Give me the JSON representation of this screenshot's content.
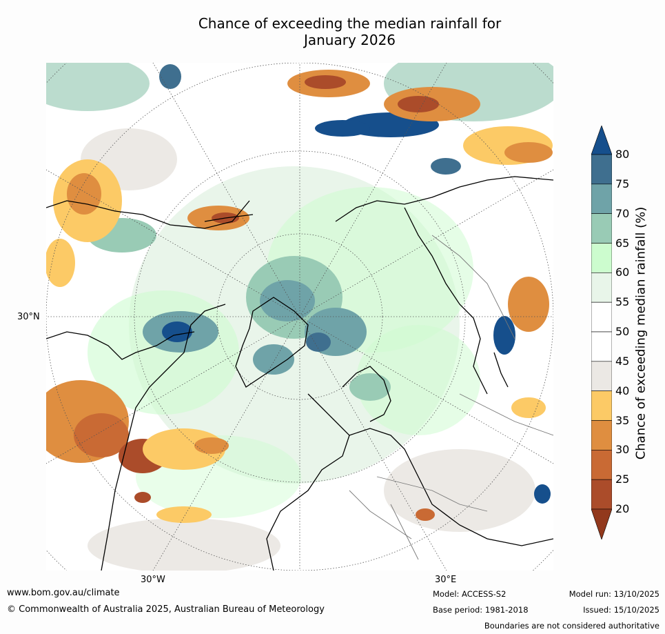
{
  "title": {
    "line1": "Chance of exceeding the median rainfall for",
    "line2": "January 2026"
  },
  "map": {
    "projection": "north-polar-stereographic",
    "lat_label": "30°N",
    "lon_labels": {
      "west": "30°W",
      "east": "30°E"
    }
  },
  "colorbar": {
    "label": "Chance of exceeding median rainfall (%)",
    "min": 20,
    "max": 80,
    "ticks": [
      "80",
      "75",
      "70",
      "65",
      "60",
      "55",
      "50",
      "45",
      "40",
      "35",
      "30",
      "25",
      "20"
    ],
    "bins": [
      {
        "from": 75,
        "to": 80,
        "color": "#3f6f8f"
      },
      {
        "from": 70,
        "to": 75,
        "color": "#6fa3a8"
      },
      {
        "from": 65,
        "to": 70,
        "color": "#99cbb5"
      },
      {
        "from": 60,
        "to": 65,
        "color": "#ccfcce"
      },
      {
        "from": 55,
        "to": 60,
        "color": "#e8f5e9"
      },
      {
        "from": 50,
        "to": 55,
        "color": "#ffffff"
      },
      {
        "from": 45,
        "to": 50,
        "color": "#ffffff"
      },
      {
        "from": 40,
        "to": 45,
        "color": "#ebe8e4"
      },
      {
        "from": 35,
        "to": 40,
        "color": "#fcca66"
      },
      {
        "from": 30,
        "to": 35,
        "color": "#df8e40"
      },
      {
        "from": 25,
        "to": 30,
        "color": "#c96a34"
      },
      {
        "from": 20,
        "to": 25,
        "color": "#ab4c2a"
      }
    ],
    "over_color": "#164f8c",
    "under_color": "#92391d"
  },
  "footer": {
    "website": "www.bom.gov.au/climate",
    "copyright": "© Commonwealth of Australia 2025, Australian Bureau of Meteorology",
    "model": "Model: ACCESS-S2",
    "base_period": "Base period: 1981-2018",
    "model_run": "Model run: 13/10/2025",
    "issued": "Issued: 15/10/2025",
    "disclaimer": "Boundaries are not considered authoritative"
  }
}
